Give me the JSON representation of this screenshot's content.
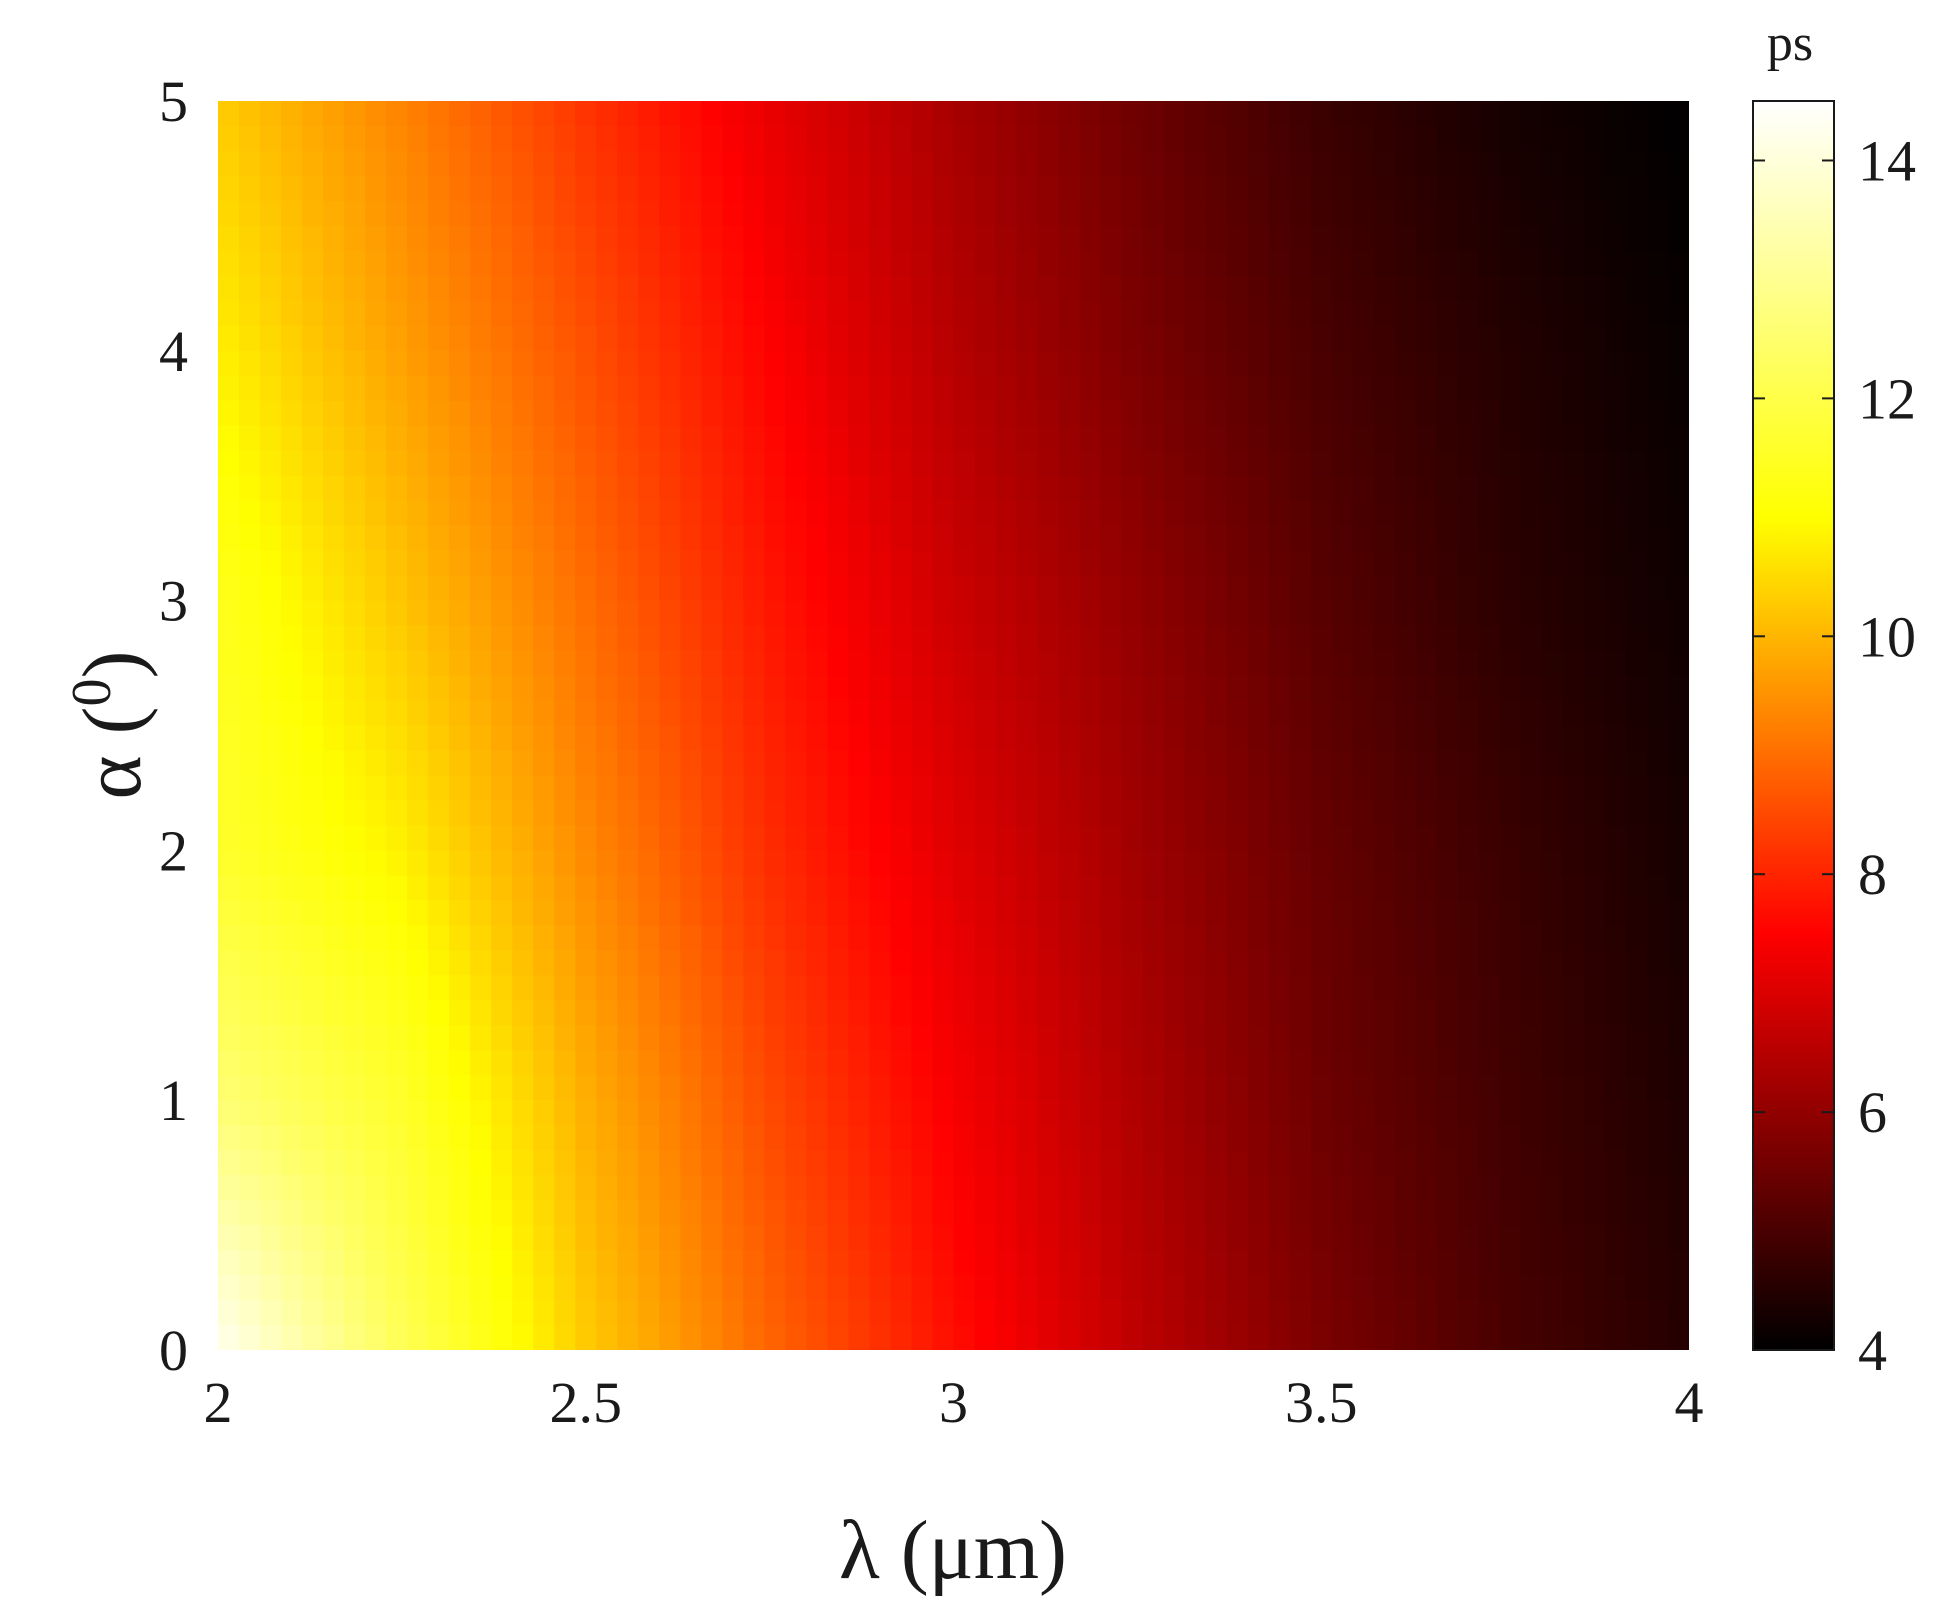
{
  "chart_data": {
    "type": "heatmap",
    "x": {
      "label": "λ (μm)",
      "ticks": [
        "2",
        "2.5",
        "3",
        "3.5",
        "4"
      ],
      "range": [
        2,
        4
      ]
    },
    "y": {
      "label": "α (°)",
      "label_symbol": "α",
      "label_paren_open": "(",
      "label_superscript": "0",
      "label_paren_close": ")",
      "ticks": [
        "0",
        "1",
        "2",
        "3",
        "4",
        "5"
      ],
      "range": [
        0,
        5
      ]
    },
    "colorbar": {
      "unit": "ps",
      "ticks": [
        "4",
        "6",
        "8",
        "10",
        "12",
        "14"
      ],
      "range": [
        4,
        14.5
      ],
      "colormap": "hot",
      "colormap_stops": [
        "#000000",
        "#ff0000",
        "#ffff00",
        "#ffffff"
      ]
    },
    "samples": {
      "x": [
        2.0,
        2.25,
        2.5,
        2.75,
        3.0,
        3.25,
        3.5,
        3.75,
        4.0
      ],
      "rows": [
        {
          "alpha": 0,
          "values": [
            14.3,
            12.2,
            10.3,
            8.9,
            7.7,
            6.6,
            5.7,
            5.0,
            4.5
          ]
        },
        {
          "alpha": 1,
          "values": [
            12.6,
            11.6,
            9.9,
            8.5,
            7.4,
            6.4,
            5.5,
            4.9,
            4.4
          ]
        },
        {
          "alpha": 2,
          "values": [
            11.6,
            10.8,
            9.4,
            8.1,
            7.1,
            6.2,
            5.4,
            4.8,
            4.3
          ]
        },
        {
          "alpha": 3,
          "values": [
            11.4,
            10.2,
            9.0,
            7.8,
            6.8,
            6.0,
            5.2,
            4.6,
            4.2
          ]
        },
        {
          "alpha": 4,
          "values": [
            10.8,
            9.7,
            8.6,
            7.5,
            6.5,
            5.7,
            5.0,
            4.5,
            4.1
          ]
        },
        {
          "alpha": 5,
          "values": [
            10.3,
            9.3,
            8.2,
            7.2,
            6.3,
            5.5,
            4.8,
            4.3,
            4.0
          ]
        }
      ]
    }
  }
}
